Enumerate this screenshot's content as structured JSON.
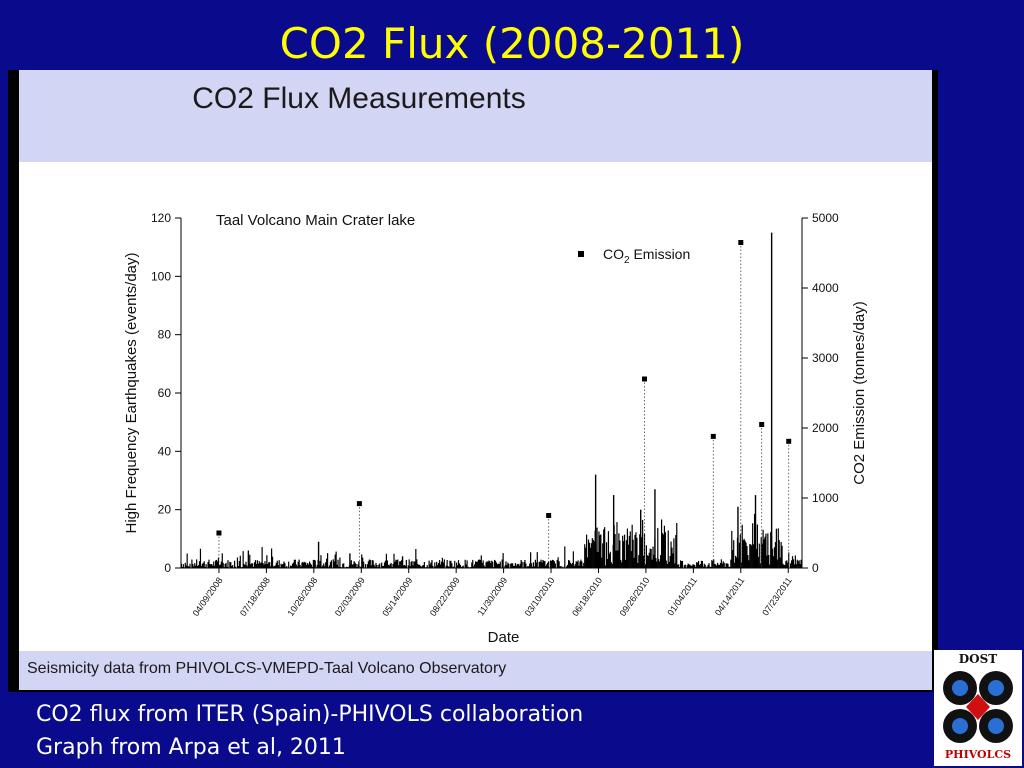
{
  "slide": {
    "title": "CO2 Flux (2008-2011)",
    "caption_lines": [
      "CO2 flux from ITER (Spain)-PHIVOLS collaboration",
      "Graph from Arpa et al, 2011"
    ]
  },
  "figure": {
    "header_title": "CO2 Flux Measurements",
    "footer_text": "Seismicity data from PHIVOLCS-VMEPD-Taal Volcano Observatory"
  },
  "logo": {
    "top_text": "DOST",
    "bottom_text": "PHIVOLCS"
  },
  "colors": {
    "slide_background": "#0a0a8c",
    "title": "#ffff00",
    "figure_band": "#d3d5f5",
    "data": "#000000"
  },
  "chart_data": {
    "type": "bar",
    "annotation": "Taal Volcano Main Crater lake",
    "xlabel": "Date",
    "ylabel": "High Frequency Earthquakes (events/day)",
    "y2label": "CO2 Emission (tonnes/day)",
    "ylim": [
      0,
      120
    ],
    "y2lim": [
      0,
      5000
    ],
    "yticks": [
      0,
      20,
      40,
      60,
      80,
      100,
      120
    ],
    "y2ticks": [
      0,
      1000,
      2000,
      3000,
      4000,
      5000
    ],
    "xlim": [
      "2008-01-20",
      "2011-08-21"
    ],
    "xticks": [
      "04/09/2008",
      "07/18/2008",
      "10/26/2008",
      "02/03/2009",
      "05/14/2009",
      "08/22/2009",
      "11/30/2009",
      "03/10/2010",
      "06/18/2010",
      "09/26/2010",
      "01/04/2011",
      "04/14/2011",
      "07/23/2011"
    ],
    "legend": {
      "position": "top-right",
      "marker": "square",
      "text": "CO",
      "subscript": "2",
      "suffix": " Emission"
    },
    "earthquake_series": {
      "type": "bar",
      "note": "daily counts",
      "peaks": [
        {
          "date": "2008-06-10",
          "value": 6
        },
        {
          "date": "2008-11-05",
          "value": 9
        },
        {
          "date": "2009-01-10",
          "value": 5
        },
        {
          "date": "2009-05-01",
          "value": 4
        },
        {
          "date": "2010-06-12",
          "value": 32
        },
        {
          "date": "2010-07-20",
          "value": 25
        },
        {
          "date": "2010-09-15",
          "value": 20
        },
        {
          "date": "2010-10-15",
          "value": 27
        },
        {
          "date": "2011-04-08",
          "value": 21
        },
        {
          "date": "2011-05-15",
          "value": 25
        },
        {
          "date": "2011-06-18",
          "value": 115
        }
      ]
    },
    "co2_series": {
      "type": "scatter",
      "marker": "square",
      "drop_lines": "dotted",
      "points": [
        {
          "date": "2008-04-09",
          "value": 500
        },
        {
          "date": "2009-01-30",
          "value": 920
        },
        {
          "date": "2010-03-05",
          "value": 750
        },
        {
          "date": "2010-09-23",
          "value": 2700
        },
        {
          "date": "2011-02-15",
          "value": 1880
        },
        {
          "date": "2011-04-14",
          "value": 4650
        },
        {
          "date": "2011-05-28",
          "value": 2050
        },
        {
          "date": "2011-07-24",
          "value": 1810
        }
      ]
    }
  }
}
